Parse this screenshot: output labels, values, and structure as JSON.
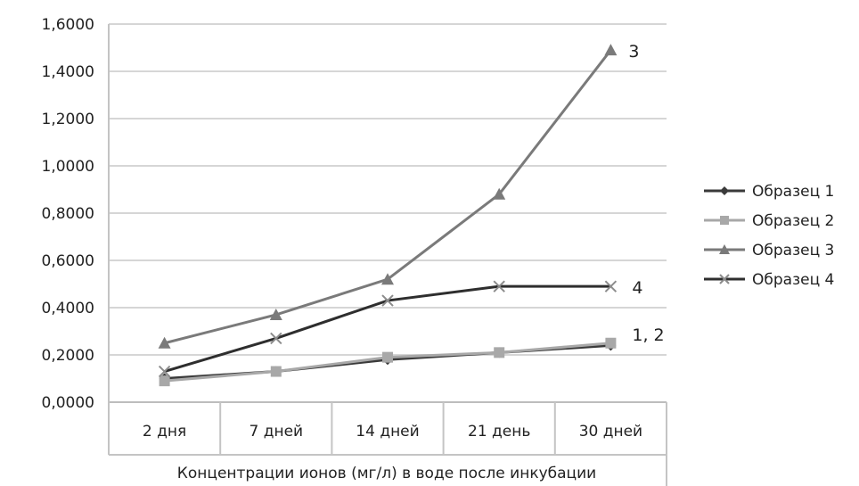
{
  "chart_data": {
    "type": "line",
    "title": "",
    "xlabel": "Концентрации ионов (мг/л) в воде после инкубации",
    "ylabel": "",
    "categories": [
      "2 дня",
      "7 дней",
      "14 дней",
      "21 день",
      "30 дней"
    ],
    "ylim": [
      0,
      1.6
    ],
    "y_ticks": [
      "0,0000",
      "0,2000",
      "0,4000",
      "0,6000",
      "0,8000",
      "1,0000",
      "1,2000",
      "1,4000",
      "1,6000"
    ],
    "grid": true,
    "legend_position": "right",
    "series": [
      {
        "name": "Образец 1",
        "values": [
          0.1,
          0.13,
          0.18,
          0.21,
          0.24
        ],
        "color": "#3a3a3a",
        "marker": "diamond"
      },
      {
        "name": "Образец 2",
        "values": [
          0.09,
          0.13,
          0.19,
          0.21,
          0.25
        ],
        "color": "#a8a8a8",
        "marker": "square"
      },
      {
        "name": "Образец 3",
        "values": [
          0.25,
          0.37,
          0.52,
          0.88,
          1.49
        ],
        "color": "#7a7a7a",
        "marker": "triangle"
      },
      {
        "name": "Образец 4",
        "values": [
          0.13,
          0.27,
          0.43,
          0.49,
          0.49
        ],
        "color": "#2e2e2e",
        "marker": "x"
      }
    ],
    "annotations": [
      {
        "text": "3",
        "x": "30 дней",
        "y": 1.49
      },
      {
        "text": "4",
        "x": "30 дней",
        "y": 0.49
      },
      {
        "text": "1, 2",
        "x": "30 дней",
        "y": 0.245
      }
    ]
  }
}
